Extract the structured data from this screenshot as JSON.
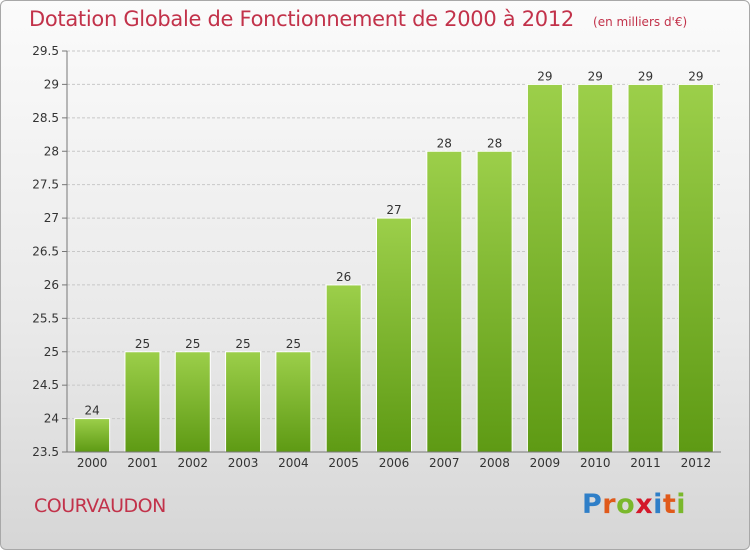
{
  "header": {
    "title": "Dotation Globale de Fonctionnement de 2000 à 2012",
    "unit": "(en milliers d'€)"
  },
  "footer": {
    "commune": "COURVAUDON",
    "logo": {
      "letters": [
        "P",
        "r",
        "o",
        "x",
        "i",
        "t",
        "i"
      ],
      "colors": [
        "#2f7fc8",
        "#e05a1b",
        "#7ab82c",
        "#d4182a",
        "#2f7fc8",
        "#e05a1b",
        "#7ab82c"
      ]
    }
  },
  "chart_data": {
    "type": "bar",
    "title": "Dotation Globale de Fonctionnement de 2000 à 2012",
    "subtitle": "(en milliers d'€)",
    "categories": [
      "2000",
      "2001",
      "2002",
      "2003",
      "2004",
      "2005",
      "2006",
      "2007",
      "2008",
      "2009",
      "2010",
      "2011",
      "2012"
    ],
    "values": [
      24,
      25,
      25,
      25,
      25,
      26,
      27,
      28,
      28,
      29,
      29,
      29,
      29
    ],
    "data_labels": [
      "24",
      "25",
      "25",
      "25",
      "25",
      "26",
      "27",
      "28",
      "28",
      "29",
      "29",
      "29",
      "29"
    ],
    "ylim": [
      23.5,
      29.5
    ],
    "yticks": [
      23.5,
      24,
      24.5,
      25,
      25.5,
      26,
      26.5,
      27,
      27.5,
      28,
      28.5,
      29,
      29.5
    ],
    "ytick_labels": [
      "23.5",
      "24",
      "24.5",
      "25",
      "25.5",
      "26",
      "26.5",
      "27",
      "27.5",
      "28",
      "28.5",
      "29",
      "29.5"
    ],
    "grid": true,
    "legend": "none",
    "colors": {
      "bar_light": "#9ccf4a",
      "bar_dark": "#5e9a14",
      "grid": "#c8c8c8",
      "text": "#333333",
      "title": "#c2324a"
    }
  }
}
